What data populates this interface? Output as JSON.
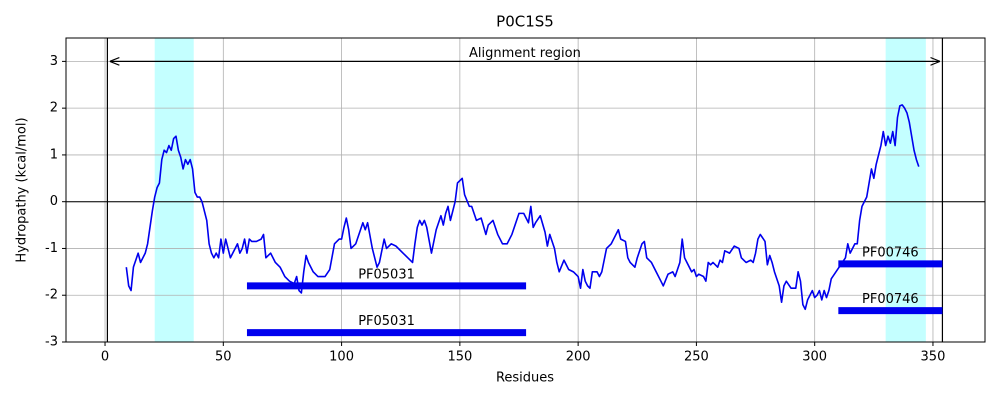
{
  "chart_data": {
    "type": "line",
    "title": "P0C1S5",
    "x_label": "Residues",
    "y_label": "Hydropathy (kcal/mol)",
    "xlim": [
      -16.5,
      372
    ],
    "ylim": [
      -3,
      3.5
    ],
    "xticks": [
      0,
      50,
      100,
      150,
      200,
      250,
      300,
      350
    ],
    "yticks": [
      -3,
      -2,
      -1,
      0,
      1,
      2,
      3
    ],
    "grid": true,
    "color": "#0000ee",
    "x": [
      9,
      10,
      11,
      12,
      14,
      15,
      17,
      18,
      20,
      21,
      22,
      23,
      24,
      25,
      26,
      27,
      28,
      29,
      30,
      31,
      32,
      33,
      34,
      35,
      36,
      37,
      38,
      39,
      40,
      41,
      42,
      43,
      44,
      45,
      46,
      47,
      48,
      49,
      50,
      51,
      52,
      53,
      54,
      55,
      56,
      57,
      58,
      59,
      60,
      61,
      62,
      64,
      66,
      67,
      68,
      70,
      72,
      74,
      76,
      78,
      80,
      81,
      82,
      83,
      84,
      85,
      86,
      88,
      90,
      93,
      95,
      97,
      99,
      100,
      101,
      102,
      103,
      104,
      106,
      108,
      109,
      110,
      111,
      113,
      115,
      116,
      118,
      119,
      121,
      123,
      126,
      128,
      130,
      131,
      132,
      133,
      134,
      135,
      136,
      138,
      140,
      142,
      143,
      144,
      145,
      146,
      148,
      149,
      151,
      152,
      154,
      155,
      157,
      159,
      161,
      162,
      164,
      166,
      168,
      170,
      172,
      173,
      175,
      177,
      179,
      180,
      181,
      182,
      184,
      186,
      187,
      188,
      190,
      191,
      192,
      194,
      196,
      198,
      200,
      201,
      202,
      203,
      204,
      205,
      206,
      208,
      209,
      210,
      212,
      214,
      216,
      217,
      218,
      220,
      221,
      222,
      224,
      225,
      227,
      228,
      229,
      231,
      233,
      235,
      236,
      238,
      240,
      241,
      243,
      244,
      245,
      246,
      248,
      249,
      250,
      251,
      253,
      254,
      255,
      256,
      257,
      259,
      260,
      261,
      262,
      264,
      266,
      268,
      269,
      271,
      273,
      274,
      275,
      276,
      277,
      279,
      280,
      281,
      282,
      283,
      285,
      286,
      287,
      288,
      290,
      292,
      293,
      294,
      295,
      296,
      297,
      298,
      299,
      300,
      301,
      302,
      303,
      304,
      305,
      306,
      307,
      309,
      311,
      313,
      314,
      315,
      317,
      318,
      319,
      320,
      322,
      323,
      324,
      325,
      326,
      327,
      328,
      329,
      330,
      331,
      332,
      333,
      334,
      335,
      336,
      337,
      338,
      339,
      340,
      341,
      342,
      343,
      344
    ],
    "values": [
      -1.4,
      -1.8,
      -1.9,
      -1.4,
      -1.1,
      -1.3,
      -1.1,
      -0.9,
      -0.2,
      0.1,
      0.3,
      0.4,
      0.9,
      1.1,
      1.05,
      1.2,
      1.1,
      1.35,
      1.4,
      1.1,
      0.95,
      0.7,
      0.9,
      0.8,
      0.9,
      0.7,
      0.2,
      0.1,
      0.1,
      0,
      -0.2,
      -0.4,
      -0.9,
      -1.1,
      -1.2,
      -1.1,
      -1.2,
      -0.8,
      -1.1,
      -0.8,
      -1.0,
      -1.2,
      -1.1,
      -1.0,
      -0.9,
      -1.1,
      -1.0,
      -0.8,
      -1.1,
      -0.8,
      -0.85,
      -0.85,
      -0.8,
      -0.7,
      -1.2,
      -1.1,
      -1.3,
      -1.4,
      -1.6,
      -1.7,
      -1.75,
      -1.6,
      -1.9,
      -1.95,
      -1.5,
      -1.15,
      -1.3,
      -1.5,
      -1.6,
      -1.6,
      -1.45,
      -0.9,
      -0.8,
      -0.8,
      -0.55,
      -0.35,
      -0.6,
      -1.0,
      -0.9,
      -0.6,
      -0.45,
      -0.6,
      -0.45,
      -1.0,
      -1.4,
      -1.3,
      -0.8,
      -1.0,
      -0.9,
      -0.95,
      -1.1,
      -1.2,
      -1.3,
      -0.9,
      -0.55,
      -0.4,
      -0.5,
      -0.4,
      -0.55,
      -1.1,
      -0.6,
      -0.3,
      -0.5,
      -0.25,
      -0.1,
      -0.4,
      0.0,
      0.4,
      0.5,
      0.15,
      -0.1,
      -0.1,
      -0.4,
      -0.35,
      -0.7,
      -0.5,
      -0.4,
      -0.7,
      -0.9,
      -0.9,
      -0.7,
      -0.55,
      -0.25,
      -0.25,
      -0.45,
      -0.1,
      -0.55,
      -0.45,
      -0.3,
      -0.65,
      -0.95,
      -0.7,
      -1.0,
      -1.3,
      -1.5,
      -1.25,
      -1.45,
      -1.5,
      -1.6,
      -1.85,
      -1.45,
      -1.7,
      -1.8,
      -1.85,
      -1.5,
      -1.5,
      -1.6,
      -1.5,
      -1.0,
      -0.9,
      -0.7,
      -0.6,
      -0.8,
      -0.85,
      -1.2,
      -1.3,
      -1.4,
      -1.2,
      -0.9,
      -0.85,
      -1.2,
      -1.3,
      -1.5,
      -1.7,
      -1.8,
      -1.55,
      -1.5,
      -1.6,
      -1.3,
      -0.8,
      -1.2,
      -1.3,
      -1.5,
      -1.45,
      -1.6,
      -1.55,
      -1.6,
      -1.7,
      -1.3,
      -1.35,
      -1.3,
      -1.4,
      -1.25,
      -1.3,
      -1.05,
      -1.1,
      -0.95,
      -1.0,
      -1.2,
      -1.3,
      -1.25,
      -1.3,
      -1.1,
      -0.8,
      -0.7,
      -0.85,
      -1.35,
      -1.15,
      -1.3,
      -1.5,
      -1.8,
      -2.15,
      -1.8,
      -1.7,
      -1.85,
      -1.85,
      -1.5,
      -1.7,
      -2.2,
      -2.3,
      -2.1,
      -2.0,
      -1.9,
      -2.05,
      -2.0,
      -1.9,
      -2.1,
      -1.9,
      -2.05,
      -1.9,
      -1.65,
      -1.5,
      -1.35,
      -1.2,
      -0.9,
      -1.1,
      -0.9,
      -0.9,
      -0.4,
      -0.1,
      0.1,
      0.4,
      0.7,
      0.5,
      0.8,
      1.0,
      1.2,
      1.5,
      1.2,
      1.4,
      1.25,
      1.5,
      1.2,
      1.8,
      2.05,
      2.07,
      2.0,
      1.9,
      1.7,
      1.4,
      1.1,
      0.9,
      0.75
    ],
    "highlight_color": "#c4ffff",
    "highlight_spans": [
      {
        "start": 21,
        "end": 37.5
      },
      {
        "start": 330,
        "end": 347
      }
    ],
    "vlines": [
      1,
      354
    ],
    "hline": 0,
    "alignment": {
      "label": "Alignment region",
      "start": 2,
      "end": 353,
      "y": 3
    },
    "domain_color": "#0000ee",
    "domains": [
      {
        "label": "PF05031",
        "start": 60,
        "end": 178,
        "y": -1.8
      },
      {
        "label": "PF05031",
        "start": 60,
        "end": 178,
        "y": -2.8
      },
      {
        "label": "PF00746",
        "start": 310,
        "end": 354,
        "y": -1.33
      },
      {
        "label": "PF00746",
        "start": 310,
        "end": 354,
        "y": -2.33
      }
    ]
  }
}
